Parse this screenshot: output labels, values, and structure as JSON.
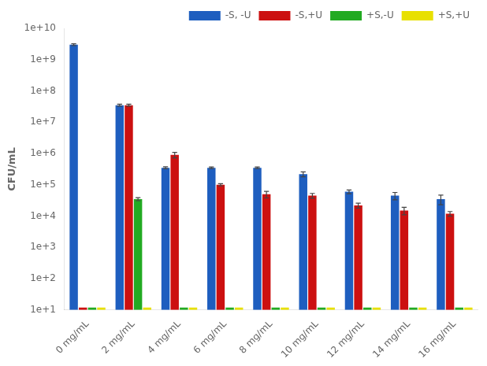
{
  "chart_data": {
    "type": "bar",
    "categories": [
      "0 mg/mL",
      "2 mg/mL",
      "4 mg/mL",
      "6 mg/mL",
      "8 mg/mL",
      "10 mg/mL",
      "12 mg/mL",
      "14 mg/mL",
      "16 mg/mL"
    ],
    "series": [
      {
        "name": "-S, -U",
        "color": "#1E5EBF",
        "values": [
          3000000000.0,
          35000000.0,
          350000.0,
          350000.0,
          350000.0,
          220000.0,
          60000.0,
          45000.0,
          35000.0
        ],
        "errors": [
          200000000.0,
          2500000.0,
          25000.0,
          20000.0,
          20000.0,
          40000.0,
          8000.0,
          12000.0,
          12000.0
        ]
      },
      {
        "name": "-S,+U",
        "color": "#CC1010",
        "values": [
          12,
          35000000.0,
          900000.0,
          100000.0,
          50000.0,
          45000.0,
          22000.0,
          15000.0,
          12000.0
        ],
        "errors": [
          0,
          2500000.0,
          180000.0,
          8000.0,
          12000.0,
          8000.0,
          4000.0,
          4000.0,
          2000.0
        ]
      },
      {
        "name": "+S,-U",
        "color": "#22AA22",
        "values": [
          12,
          35000.0,
          12,
          12,
          12,
          12,
          12,
          12,
          12
        ],
        "errors": [
          0,
          4000.0,
          0,
          0,
          0,
          0,
          0,
          0,
          0
        ]
      },
      {
        "name": "+S,+U",
        "color": "#E8E000",
        "values": [
          12,
          12,
          12,
          12,
          12,
          12,
          12,
          12,
          12
        ],
        "errors": [
          0,
          0,
          0,
          0,
          0,
          0,
          0,
          0,
          0
        ]
      }
    ],
    "y_label": "CFU/mL",
    "ylim": [
      10,
      10000000000.0
    ],
    "yticks": [
      {
        "value": 10,
        "label": "1e+1"
      },
      {
        "value": 100,
        "label": "1e+2"
      },
      {
        "value": 1000,
        "label": "1e+3"
      },
      {
        "value": 10000,
        "label": "1e+4"
      },
      {
        "value": 100000,
        "label": "1e+5"
      },
      {
        "value": 1000000,
        "label": "1e+6"
      },
      {
        "value": 10000000,
        "label": "1e+7"
      },
      {
        "value": 100000000,
        "label": "1e+8"
      },
      {
        "value": 1000000000,
        "label": "1e+9"
      },
      {
        "value": 10000000000,
        "label": "1e+10"
      }
    ],
    "log": "y",
    "grid": false,
    "legend": "upper right"
  }
}
